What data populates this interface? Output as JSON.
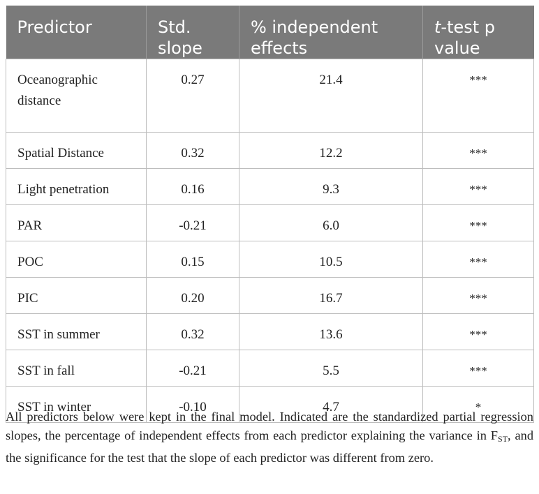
{
  "table": {
    "headers": {
      "predictor": "Predictor",
      "slope_line1": "Std.",
      "slope_line2": "slope",
      "effects_line1": "% independent",
      "effects_line2": "effects",
      "ttest_italic": "t",
      "ttest_rest": "-test p",
      "ttest_line2": "value"
    },
    "rows": [
      {
        "predictor": "Oceanographic distance",
        "slope": "0.27",
        "effects": "21.4",
        "p": "***"
      },
      {
        "predictor": "Spatial Distance",
        "slope": "0.32",
        "effects": "12.2",
        "p": "***"
      },
      {
        "predictor": "Light penetration",
        "slope": "0.16",
        "effects": "9.3",
        "p": "***"
      },
      {
        "predictor": "PAR",
        "slope": "-0.21",
        "effects": "6.0",
        "p": "***"
      },
      {
        "predictor": "POC",
        "slope": "0.15",
        "effects": "10.5",
        "p": "***"
      },
      {
        "predictor": "PIC",
        "slope": "0.20",
        "effects": "16.7",
        "p": "***"
      },
      {
        "predictor": "SST in summer",
        "slope": "0.32",
        "effects": "13.6",
        "p": "***"
      },
      {
        "predictor": "SST in fall",
        "slope": "-0.21",
        "effects": "5.5",
        "p": "***"
      },
      {
        "predictor": "SST in winter",
        "slope": "-0.10",
        "effects": "4.7",
        "p": "*"
      }
    ]
  },
  "footnote": {
    "before": "All predictors below were kept in the final model. Indicated are the standardized partial regression slopes, the percentage of independent effects from each predictor explaining the variance in F",
    "subscript": "ST",
    "after": ", and the significance for the test that the slope of each predictor was different from zero."
  }
}
